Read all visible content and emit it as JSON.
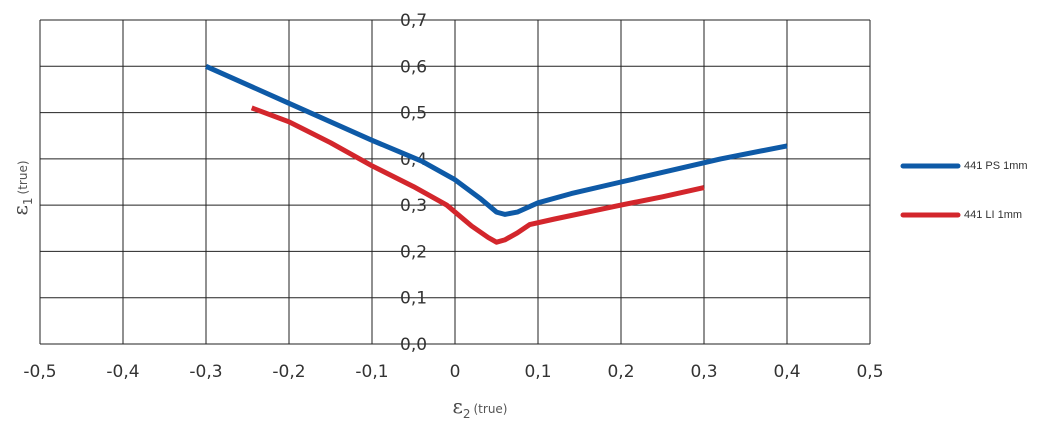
{
  "chart_data": {
    "type": "line",
    "xlim": [
      -0.5,
      0.5
    ],
    "ylim": [
      0.0,
      0.7
    ],
    "grid": true,
    "legend_position": "right",
    "x_ticks": [
      "-0,5",
      "-0,4",
      "-0,3",
      "-0,2",
      "-0,1",
      "0",
      "0,1",
      "0,2",
      "0,3",
      "0,4",
      "0,5"
    ],
    "y_ticks": [
      "0,0",
      "0,1",
      "0,2",
      "0,3",
      "0,4",
      "0,5",
      "0,6",
      "0,7"
    ],
    "xlabel": {
      "symbol": "ε",
      "subscript": "2",
      "unit": "(true)"
    },
    "ylabel": {
      "symbol": "ε",
      "subscript": "1",
      "unit": "(true)"
    },
    "series": [
      {
        "name": "441 PS 1mm",
        "color": "#0e5aa7",
        "points": [
          [
            -0.3,
            0.6
          ],
          [
            -0.2,
            0.52
          ],
          [
            -0.1,
            0.44
          ],
          [
            -0.04,
            0.395
          ],
          [
            0.0,
            0.355
          ],
          [
            0.03,
            0.315
          ],
          [
            0.05,
            0.285
          ],
          [
            0.06,
            0.28
          ],
          [
            0.075,
            0.285
          ],
          [
            0.1,
            0.305
          ],
          [
            0.14,
            0.325
          ],
          [
            0.2,
            0.35
          ],
          [
            0.26,
            0.375
          ],
          [
            0.32,
            0.4
          ],
          [
            0.4,
            0.428
          ]
        ]
      },
      {
        "name": "441 LI 1mm",
        "color": "#d3262c",
        "points": [
          [
            -0.245,
            0.51
          ],
          [
            -0.2,
            0.48
          ],
          [
            -0.15,
            0.435
          ],
          [
            -0.1,
            0.385
          ],
          [
            -0.05,
            0.34
          ],
          [
            -0.01,
            0.3
          ],
          [
            0.02,
            0.255
          ],
          [
            0.04,
            0.23
          ],
          [
            0.05,
            0.22
          ],
          [
            0.06,
            0.225
          ],
          [
            0.075,
            0.24
          ],
          [
            0.09,
            0.258
          ],
          [
            0.12,
            0.27
          ],
          [
            0.2,
            0.3
          ],
          [
            0.25,
            0.318
          ],
          [
            0.3,
            0.338
          ]
        ]
      }
    ]
  }
}
